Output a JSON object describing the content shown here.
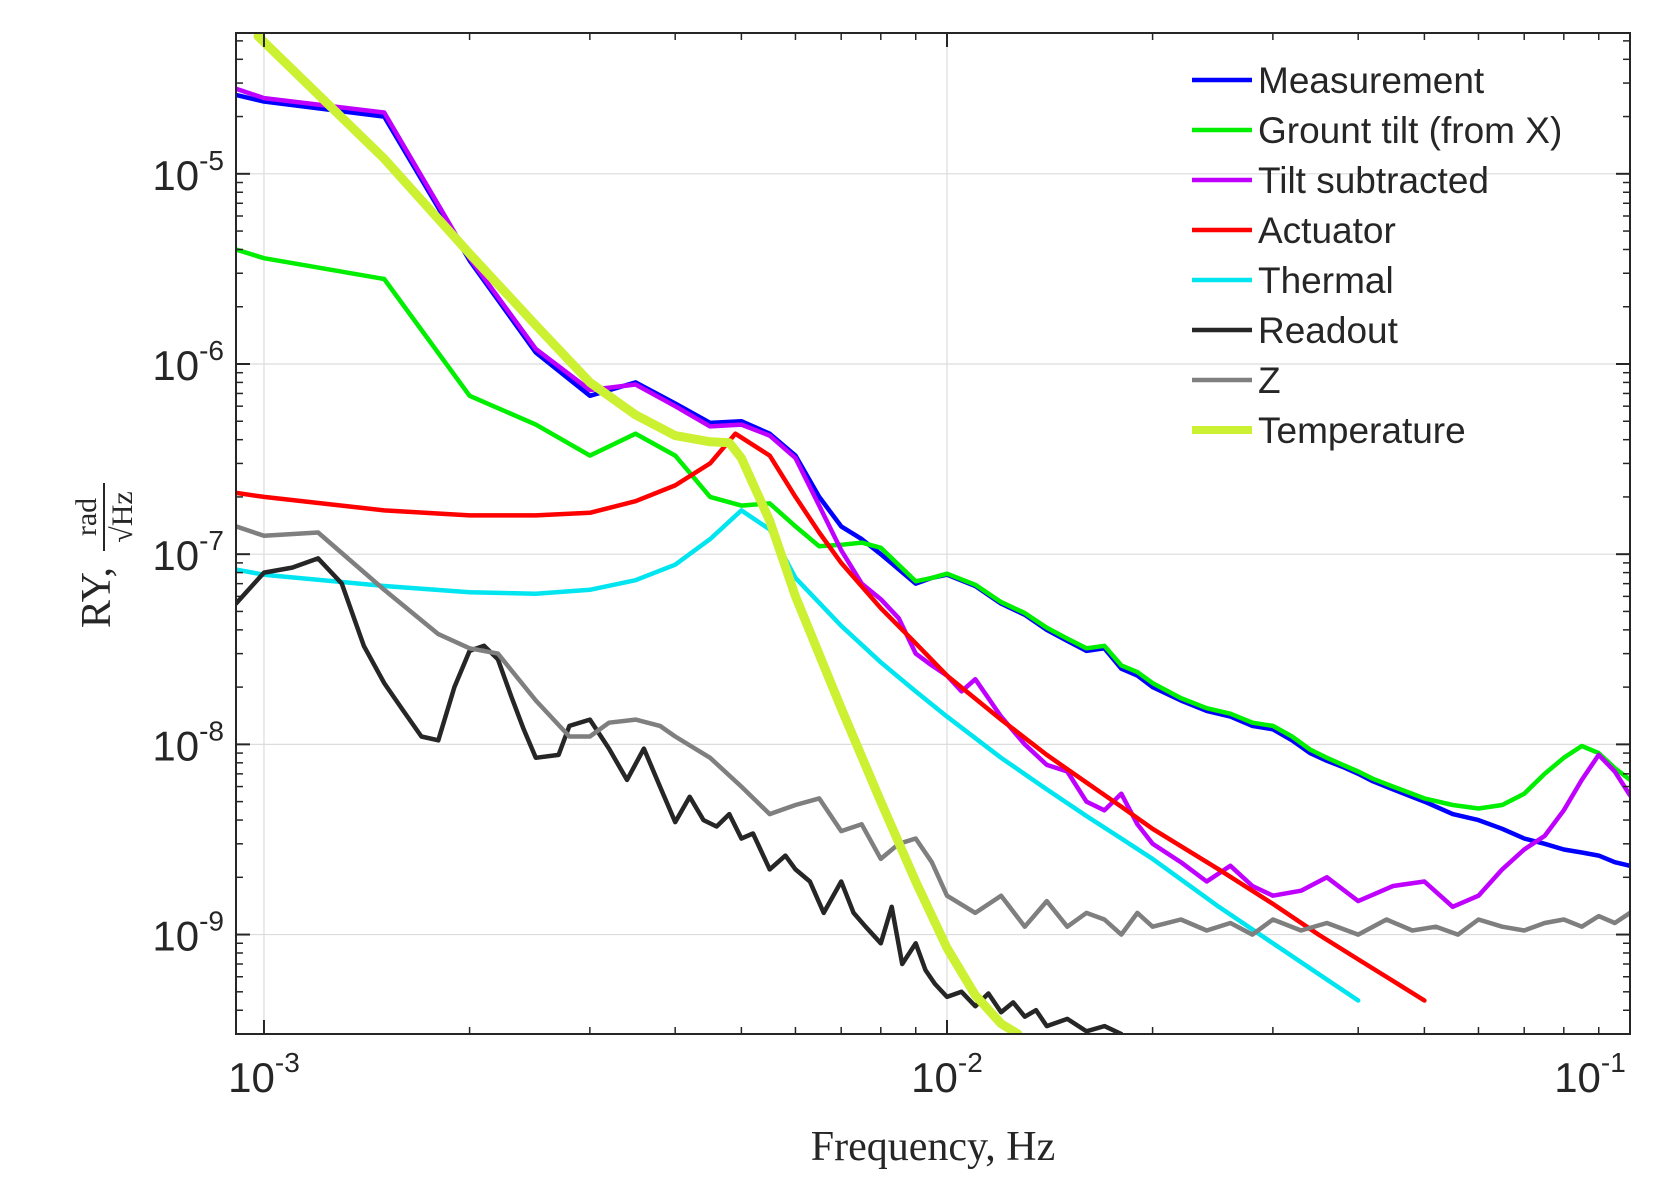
{
  "chart_data": {
    "type": "line",
    "title": "",
    "xlabel": "Frequency, Hz",
    "ylabel": {
      "main": "RY,",
      "frac_numerator": "rad",
      "frac_denominator": "√Hz"
    },
    "xscale": "log",
    "yscale": "log",
    "xlim": [
      0.00091,
      0.1
    ],
    "ylim": [
      3e-10,
      5.5e-05
    ],
    "grid": true,
    "legend_position": "top-right",
    "x_ticks": [
      {
        "value": 0.001,
        "base": "10",
        "exp": "-3"
      },
      {
        "value": 0.01,
        "base": "10",
        "exp": "-2"
      },
      {
        "value": 0.1,
        "base": "10",
        "exp": "-1"
      }
    ],
    "y_ticks": [
      {
        "value": 1e-09,
        "base": "10",
        "exp": "-9"
      },
      {
        "value": 1e-08,
        "base": "10",
        "exp": "-8"
      },
      {
        "value": 1e-07,
        "base": "10",
        "exp": "-7"
      },
      {
        "value": 1e-06,
        "base": "10",
        "exp": "-6"
      },
      {
        "value": 1e-05,
        "base": "10",
        "exp": "-5"
      }
    ],
    "series": [
      {
        "name": "Measurement",
        "color": "#0000ff",
        "x": [
          0.00091,
          0.001,
          0.0015,
          0.002,
          0.0025,
          0.003,
          0.0035,
          0.004,
          0.0045,
          0.005,
          0.0055,
          0.006,
          0.0065,
          0.007,
          0.0075,
          0.008,
          0.009,
          0.0095,
          0.01,
          0.011,
          0.012,
          0.013,
          0.014,
          0.015,
          0.016,
          0.017,
          0.018,
          0.019,
          0.02,
          0.022,
          0.024,
          0.026,
          0.028,
          0.03,
          0.032,
          0.034,
          0.036,
          0.038,
          0.04,
          0.042,
          0.045,
          0.05,
          0.055,
          0.06,
          0.065,
          0.07,
          0.075,
          0.08,
          0.085,
          0.09,
          0.095,
          0.1
        ],
        "y": [
          2.6e-05,
          2.4e-05,
          2e-05,
          3.5e-06,
          1.15e-06,
          6.8e-07,
          8e-07,
          6.2e-07,
          4.9e-07,
          5e-07,
          4.3e-07,
          3.3e-07,
          2e-07,
          1.4e-07,
          1.2e-07,
          1e-07,
          7e-08,
          7.5e-08,
          7.8e-08,
          6.8e-08,
          5.5e-08,
          4.8e-08,
          4e-08,
          3.5e-08,
          3.1e-08,
          3.2e-08,
          2.5e-08,
          2.3e-08,
          2e-08,
          1.7e-08,
          1.5e-08,
          1.4e-08,
          1.25e-08,
          1.2e-08,
          1.05e-08,
          9e-09,
          8.2e-09,
          7.6e-09,
          7e-09,
          6.4e-09,
          5.8e-09,
          5e-09,
          4.3e-09,
          4e-09,
          3.6e-09,
          3.2e-09,
          3e-09,
          2.8e-09,
          2.7e-09,
          2.6e-09,
          2.4e-09,
          2.3e-09
        ]
      },
      {
        "name": "Grount tilt (from X)",
        "color": "#00ee00",
        "x": [
          0.00091,
          0.001,
          0.0015,
          0.002,
          0.0025,
          0.003,
          0.0035,
          0.004,
          0.0045,
          0.005,
          0.0055,
          0.006,
          0.0065,
          0.007,
          0.0075,
          0.008,
          0.009,
          0.0095,
          0.01,
          0.011,
          0.012,
          0.013,
          0.014,
          0.015,
          0.016,
          0.017,
          0.018,
          0.019,
          0.02,
          0.022,
          0.024,
          0.026,
          0.028,
          0.03,
          0.032,
          0.034,
          0.036,
          0.038,
          0.04,
          0.042,
          0.045,
          0.05,
          0.055,
          0.06,
          0.065,
          0.07,
          0.075,
          0.08,
          0.085,
          0.09,
          0.095,
          0.1
        ],
        "y": [
          4e-06,
          3.6e-06,
          2.8e-06,
          6.8e-07,
          4.8e-07,
          3.3e-07,
          4.3e-07,
          3.3e-07,
          2e-07,
          1.8e-07,
          1.85e-07,
          1.4e-07,
          1.1e-07,
          1.12e-07,
          1.15e-07,
          1.08e-07,
          7.2e-08,
          7.5e-08,
          7.9e-08,
          6.9e-08,
          5.6e-08,
          4.9e-08,
          4.1e-08,
          3.6e-08,
          3.2e-08,
          3.3e-08,
          2.6e-08,
          2.4e-08,
          2.1e-08,
          1.75e-08,
          1.55e-08,
          1.45e-08,
          1.3e-08,
          1.25e-08,
          1.1e-08,
          9.4e-09,
          8.5e-09,
          7.8e-09,
          7.2e-09,
          6.6e-09,
          6e-09,
          5.2e-09,
          4.8e-09,
          4.6e-09,
          4.8e-09,
          5.5e-09,
          7e-09,
          8.5e-09,
          9.8e-09,
          9e-09,
          7.5e-09,
          6.5e-09
        ]
      },
      {
        "name": "Tilt subtracted",
        "color": "#c000ff",
        "x": [
          0.00091,
          0.001,
          0.0015,
          0.002,
          0.0025,
          0.003,
          0.0035,
          0.004,
          0.0045,
          0.005,
          0.0055,
          0.006,
          0.0065,
          0.007,
          0.0075,
          0.008,
          0.0085,
          0.009,
          0.0095,
          0.01,
          0.0105,
          0.011,
          0.012,
          0.013,
          0.014,
          0.015,
          0.016,
          0.017,
          0.018,
          0.019,
          0.02,
          0.022,
          0.024,
          0.026,
          0.028,
          0.03,
          0.033,
          0.036,
          0.04,
          0.045,
          0.05,
          0.055,
          0.06,
          0.065,
          0.07,
          0.075,
          0.08,
          0.085,
          0.09,
          0.095,
          0.1
        ],
        "y": [
          2.8e-05,
          2.5e-05,
          2.1e-05,
          3.6e-06,
          1.2e-06,
          7.3e-07,
          7.8e-07,
          6e-07,
          4.7e-07,
          4.8e-07,
          4.2e-07,
          3.2e-07,
          1.8e-07,
          1.05e-07,
          7e-08,
          5.8e-08,
          4.6e-08,
          3e-08,
          2.6e-08,
          2.3e-08,
          1.9e-08,
          2.2e-08,
          1.4e-08,
          1e-08,
          7.8e-09,
          7.2e-09,
          5e-09,
          4.5e-09,
          5.5e-09,
          3.8e-09,
          3e-09,
          2.4e-09,
          1.9e-09,
          2.3e-09,
          1.8e-09,
          1.6e-09,
          1.7e-09,
          2e-09,
          1.5e-09,
          1.8e-09,
          1.9e-09,
          1.4e-09,
          1.6e-09,
          2.2e-09,
          2.8e-09,
          3.3e-09,
          4.5e-09,
          6.5e-09,
          8.8e-09,
          7.2e-09,
          5.4e-09
        ]
      },
      {
        "name": "Actuator",
        "color": "#ff0000",
        "x": [
          0.00091,
          0.001,
          0.0015,
          0.002,
          0.0025,
          0.003,
          0.0035,
          0.004,
          0.0045,
          0.0049,
          0.0055,
          0.006,
          0.0065,
          0.007,
          0.008,
          0.009,
          0.01,
          0.012,
          0.014,
          0.016,
          0.018,
          0.02,
          0.025,
          0.03,
          0.035,
          0.04,
          0.045,
          0.05
        ],
        "y": [
          2.1e-07,
          2e-07,
          1.7e-07,
          1.6e-07,
          1.6e-07,
          1.65e-07,
          1.9e-07,
          2.3e-07,
          3e-07,
          4.3e-07,
          3.3e-07,
          2e-07,
          1.3e-07,
          9e-08,
          5.2e-08,
          3.4e-08,
          2.3e-08,
          1.35e-08,
          8.8e-09,
          6.3e-09,
          4.7e-09,
          3.6e-09,
          2.2e-09,
          1.45e-09,
          1e-09,
          7.4e-10,
          5.7e-10,
          4.5e-10
        ]
      },
      {
        "name": "Thermal",
        "color": "#00e5f0",
        "x": [
          0.00091,
          0.001,
          0.0015,
          0.002,
          0.0025,
          0.003,
          0.0035,
          0.004,
          0.0045,
          0.005,
          0.0055,
          0.006,
          0.007,
          0.008,
          0.009,
          0.01,
          0.012,
          0.014,
          0.016,
          0.018,
          0.02,
          0.025,
          0.03,
          0.035,
          0.04
        ],
        "y": [
          8.3e-08,
          7.8e-08,
          6.8e-08,
          6.3e-08,
          6.2e-08,
          6.5e-08,
          7.3e-08,
          8.8e-08,
          1.2e-07,
          1.7e-07,
          1.35e-07,
          7.5e-08,
          4.2e-08,
          2.7e-08,
          1.9e-08,
          1.4e-08,
          8.5e-09,
          5.8e-09,
          4.2e-09,
          3.2e-09,
          2.5e-09,
          1.4e-09,
          9e-10,
          6.2e-10,
          4.5e-10
        ]
      },
      {
        "name": "Readout",
        "color": "#262626",
        "x": [
          0.00091,
          0.001,
          0.0011,
          0.0012,
          0.0013,
          0.0014,
          0.0015,
          0.0016,
          0.0017,
          0.0018,
          0.0019,
          0.002,
          0.0021,
          0.0022,
          0.0023,
          0.0024,
          0.0025,
          0.0027,
          0.0028,
          0.003,
          0.0032,
          0.0034,
          0.0036,
          0.0038,
          0.004,
          0.0042,
          0.0044,
          0.0046,
          0.0048,
          0.005,
          0.0052,
          0.0055,
          0.0058,
          0.006,
          0.0063,
          0.0066,
          0.007,
          0.0073,
          0.0076,
          0.008,
          0.0083,
          0.0086,
          0.009,
          0.0093,
          0.0096,
          0.01,
          0.0105,
          0.011,
          0.0115,
          0.012,
          0.0125,
          0.013,
          0.0135,
          0.014,
          0.015,
          0.016,
          0.017,
          0.018
        ],
        "y": [
          5.5e-08,
          8e-08,
          8.5e-08,
          9.5e-08,
          7e-08,
          3.3e-08,
          2.1e-08,
          1.5e-08,
          1.1e-08,
          1.05e-08,
          2e-08,
          3.1e-08,
          3.3e-08,
          2.8e-08,
          1.8e-08,
          1.2e-08,
          8.5e-09,
          8.8e-09,
          1.25e-08,
          1.35e-08,
          9.5e-09,
          6.5e-09,
          9.5e-09,
          6e-09,
          3.9e-09,
          5.3e-09,
          4e-09,
          3.7e-09,
          4.3e-09,
          3.2e-09,
          3.4e-09,
          2.2e-09,
          2.6e-09,
          2.2e-09,
          1.9e-09,
          1.3e-09,
          1.9e-09,
          1.3e-09,
          1.1e-09,
          9e-10,
          1.4e-09,
          7e-10,
          9e-10,
          6.5e-10,
          5.5e-10,
          4.7e-10,
          5e-10,
          4.2e-10,
          4.9e-10,
          3.9e-10,
          4.4e-10,
          3.7e-10,
          4e-10,
          3.3e-10,
          3.6e-10,
          3.1e-10,
          3.3e-10,
          3e-10
        ]
      },
      {
        "name": "Z",
        "color": "#7f7f7f",
        "x": [
          0.00091,
          0.001,
          0.0012,
          0.0015,
          0.0018,
          0.002,
          0.0022,
          0.0025,
          0.0028,
          0.003,
          0.0032,
          0.0035,
          0.0038,
          0.004,
          0.0045,
          0.005,
          0.0055,
          0.006,
          0.0065,
          0.007,
          0.0075,
          0.008,
          0.0085,
          0.009,
          0.0095,
          0.01,
          0.011,
          0.012,
          0.013,
          0.014,
          0.015,
          0.016,
          0.017,
          0.018,
          0.019,
          0.02,
          0.022,
          0.024,
          0.026,
          0.028,
          0.03,
          0.033,
          0.036,
          0.04,
          0.044,
          0.048,
          0.052,
          0.056,
          0.06,
          0.065,
          0.07,
          0.075,
          0.08,
          0.085,
          0.09,
          0.095,
          0.1
        ],
        "y": [
          1.4e-07,
          1.25e-07,
          1.3e-07,
          6.5e-08,
          3.8e-08,
          3.2e-08,
          3e-08,
          1.7e-08,
          1.1e-08,
          1.1e-08,
          1.3e-08,
          1.35e-08,
          1.25e-08,
          1.1e-08,
          8.5e-09,
          6e-09,
          4.3e-09,
          4.8e-09,
          5.2e-09,
          3.5e-09,
          3.8e-09,
          2.5e-09,
          3e-09,
          3.2e-09,
          2.4e-09,
          1.6e-09,
          1.3e-09,
          1.6e-09,
          1.1e-09,
          1.5e-09,
          1.1e-09,
          1.3e-09,
          1.2e-09,
          1e-09,
          1.3e-09,
          1.1e-09,
          1.2e-09,
          1.05e-09,
          1.15e-09,
          1e-09,
          1.2e-09,
          1.05e-09,
          1.15e-09,
          1e-09,
          1.2e-09,
          1.05e-09,
          1.1e-09,
          1e-09,
          1.2e-09,
          1.1e-09,
          1.05e-09,
          1.15e-09,
          1.2e-09,
          1.1e-09,
          1.25e-09,
          1.15e-09,
          1.3e-09
        ]
      },
      {
        "name": "Temperature",
        "color": "#ccf032",
        "x": [
          0.00098,
          0.0015,
          0.002,
          0.0025,
          0.003,
          0.0035,
          0.004,
          0.0045,
          0.0048,
          0.005,
          0.0055,
          0.006,
          0.007,
          0.008,
          0.009,
          0.01,
          0.011,
          0.012,
          0.0127
        ],
        "y": [
          5.3e-05,
          1.2e-05,
          3.8e-06,
          1.6e-06,
          8e-07,
          5.4e-07,
          4.2e-07,
          3.9e-07,
          3.85e-07,
          3.2e-07,
          1.5e-07,
          6e-08,
          1.55e-08,
          5e-09,
          1.9e-09,
          8.5e-10,
          4.8e-10,
          3.4e-10,
          3e-10
        ]
      }
    ]
  }
}
